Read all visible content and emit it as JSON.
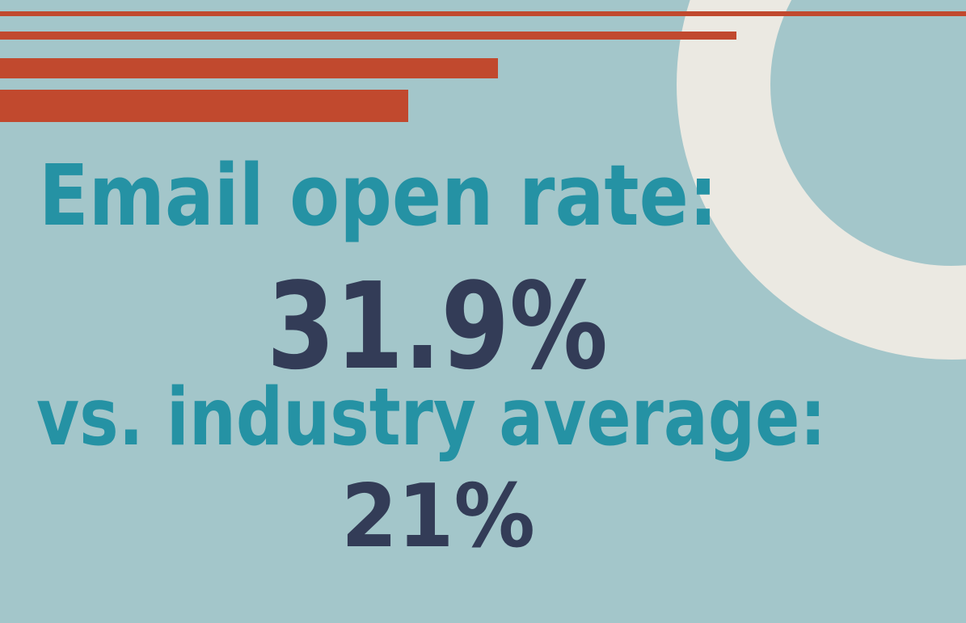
{
  "headline": "Email open rate:",
  "value": "31.9%",
  "comparison_label": "vs. industry average:",
  "comparison_value": "21%"
}
